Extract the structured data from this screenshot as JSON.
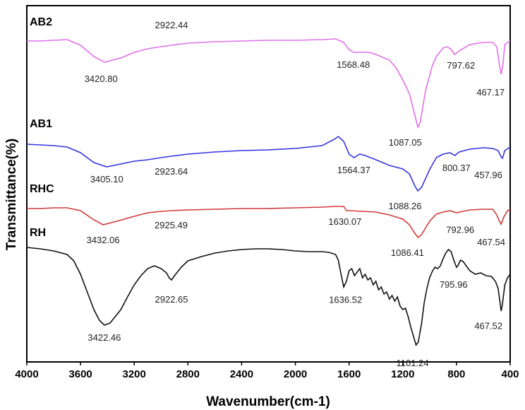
{
  "chart_data": {
    "type": "line",
    "title": "",
    "xlabel": "Wavenumber(cm-1)",
    "ylabel": "Transmittance(%)",
    "xlim": [
      4000,
      400
    ],
    "x_reversed": true,
    "xticks": [
      "4000",
      "3600",
      "3200",
      "2800",
      "2400",
      "2000",
      "1600",
      "1200",
      "800",
      "400"
    ],
    "yticks": "none",
    "series": [
      {
        "name": "AB2",
        "color": "#e070e8",
        "points": [
          [
            4000,
            50
          ],
          [
            3900,
            50
          ],
          [
            3800,
            49
          ],
          [
            3700,
            48
          ],
          [
            3600,
            56
          ],
          [
            3500,
            72
          ],
          [
            3421,
            80
          ],
          [
            3300,
            74
          ],
          [
            3200,
            66
          ],
          [
            3100,
            61
          ],
          [
            3000,
            58
          ],
          [
            2922,
            56
          ],
          [
            2800,
            53
          ],
          [
            2600,
            51
          ],
          [
            2400,
            50
          ],
          [
            2200,
            49
          ],
          [
            2000,
            49
          ],
          [
            1800,
            48
          ],
          [
            1700,
            47
          ],
          [
            1640,
            52
          ],
          [
            1600,
            62
          ],
          [
            1568,
            66
          ],
          [
            1500,
            66
          ],
          [
            1450,
            66
          ],
          [
            1400,
            69
          ],
          [
            1300,
            77
          ],
          [
            1250,
            88
          ],
          [
            1200,
            105
          ],
          [
            1150,
            125
          ],
          [
            1110,
            155
          ],
          [
            1087,
            172
          ],
          [
            1070,
            165
          ],
          [
            1030,
            120
          ],
          [
            980,
            85
          ],
          [
            950,
            72
          ],
          [
            900,
            60
          ],
          [
            870,
            58
          ],
          [
            840,
            62
          ],
          [
            815,
            69
          ],
          [
            798,
            67
          ],
          [
            780,
            64
          ],
          [
            700,
            55
          ],
          [
            600,
            52
          ],
          [
            530,
            52
          ],
          [
            500,
            58
          ],
          [
            480,
            84
          ],
          [
            467,
            97
          ],
          [
            455,
            85
          ],
          [
            440,
            55
          ],
          [
            400,
            50
          ]
        ]
      },
      {
        "name": "AB1",
        "color": "#3535e0",
        "points": [
          [
            4000,
            196
          ],
          [
            3900,
            197
          ],
          [
            3800,
            198
          ],
          [
            3700,
            200
          ],
          [
            3600,
            208
          ],
          [
            3500,
            222
          ],
          [
            3405,
            228
          ],
          [
            3300,
            224
          ],
          [
            3200,
            220
          ],
          [
            3100,
            218
          ],
          [
            3000,
            215
          ],
          [
            2924,
            213
          ],
          [
            2800,
            210
          ],
          [
            2600,
            207
          ],
          [
            2400,
            205
          ],
          [
            2200,
            204
          ],
          [
            2000,
            202
          ],
          [
            1800,
            198
          ],
          [
            1700,
            188
          ],
          [
            1680,
            185
          ],
          [
            1640,
            192
          ],
          [
            1600,
            210
          ],
          [
            1564,
            215
          ],
          [
            1520,
            210
          ],
          [
            1480,
            212
          ],
          [
            1400,
            218
          ],
          [
            1300,
            226
          ],
          [
            1200,
            231
          ],
          [
            1150,
            238
          ],
          [
            1110,
            255
          ],
          [
            1088,
            262
          ],
          [
            1060,
            257
          ],
          [
            1000,
            232
          ],
          [
            950,
            215
          ],
          [
            900,
            210
          ],
          [
            850,
            208
          ],
          [
            810,
            212
          ],
          [
            800,
            210
          ],
          [
            780,
            207
          ],
          [
            700,
            203
          ],
          [
            600,
            201
          ],
          [
            530,
            202
          ],
          [
            490,
            205
          ],
          [
            470,
            213
          ],
          [
            458,
            216
          ],
          [
            440,
            205
          ],
          [
            400,
            200
          ]
        ]
      },
      {
        "name": "RHC",
        "color": "#d03a3a",
        "points": [
          [
            4000,
            287
          ],
          [
            3900,
            287
          ],
          [
            3800,
            286
          ],
          [
            3700,
            286
          ],
          [
            3600,
            290
          ],
          [
            3500,
            303
          ],
          [
            3432,
            310
          ],
          [
            3350,
            306
          ],
          [
            3200,
            298
          ],
          [
            3100,
            293
          ],
          [
            3000,
            291
          ],
          [
            2925,
            290
          ],
          [
            2800,
            289
          ],
          [
            2600,
            288
          ],
          [
            2400,
            287
          ],
          [
            2200,
            287
          ],
          [
            2000,
            286
          ],
          [
            1800,
            285
          ],
          [
            1700,
            284
          ],
          [
            1640,
            284
          ],
          [
            1620,
            290
          ],
          [
            1600,
            290
          ],
          [
            1500,
            291
          ],
          [
            1400,
            292
          ],
          [
            1300,
            296
          ],
          [
            1200,
            302
          ],
          [
            1150,
            310
          ],
          [
            1110,
            322
          ],
          [
            1086,
            328
          ],
          [
            1060,
            324
          ],
          [
            1000,
            305
          ],
          [
            950,
            295
          ],
          [
            900,
            292
          ],
          [
            850,
            290
          ],
          [
            800,
            293
          ],
          [
            780,
            292
          ],
          [
            700,
            289
          ],
          [
            600,
            288
          ],
          [
            530,
            288
          ],
          [
            500,
            296
          ],
          [
            480,
            305
          ],
          [
            467,
            309
          ],
          [
            450,
            300
          ],
          [
            420,
            290
          ],
          [
            400,
            288
          ]
        ]
      },
      {
        "name": "RH",
        "color": "#111111",
        "points": [
          [
            4000,
            342
          ],
          [
            3900,
            344
          ],
          [
            3800,
            347
          ],
          [
            3700,
            352
          ],
          [
            3650,
            361
          ],
          [
            3600,
            380
          ],
          [
            3550,
            405
          ],
          [
            3500,
            430
          ],
          [
            3460,
            445
          ],
          [
            3422,
            452
          ],
          [
            3380,
            449
          ],
          [
            3300,
            430
          ],
          [
            3250,
            412
          ],
          [
            3200,
            395
          ],
          [
            3150,
            382
          ],
          [
            3100,
            372
          ],
          [
            3050,
            368
          ],
          [
            3000,
            372
          ],
          [
            2960,
            378
          ],
          [
            2940,
            385
          ],
          [
            2922,
            388
          ],
          [
            2900,
            382
          ],
          [
            2850,
            370
          ],
          [
            2800,
            361
          ],
          [
            2700,
            355
          ],
          [
            2600,
            350
          ],
          [
            2500,
            347
          ],
          [
            2400,
            345
          ],
          [
            2300,
            344
          ],
          [
            2200,
            344
          ],
          [
            2100,
            345
          ],
          [
            2000,
            347
          ],
          [
            1900,
            348
          ],
          [
            1800,
            348
          ],
          [
            1750,
            349
          ],
          [
            1700,
            352
          ],
          [
            1680,
            360
          ],
          [
            1660,
            380
          ],
          [
            1640,
            398
          ],
          [
            1620,
            390
          ],
          [
            1600,
            375
          ],
          [
            1580,
            372
          ],
          [
            1560,
            382
          ],
          [
            1540,
            377
          ],
          [
            1520,
            372
          ],
          [
            1500,
            385
          ],
          [
            1480,
            380
          ],
          [
            1460,
            388
          ],
          [
            1440,
            385
          ],
          [
            1420,
            395
          ],
          [
            1400,
            390
          ],
          [
            1380,
            402
          ],
          [
            1360,
            398
          ],
          [
            1340,
            408
          ],
          [
            1320,
            405
          ],
          [
            1300,
            415
          ],
          [
            1280,
            410
          ],
          [
            1260,
            418
          ],
          [
            1240,
            412
          ],
          [
            1220,
            425
          ],
          [
            1200,
            430
          ],
          [
            1180,
            428
          ],
          [
            1160,
            440
          ],
          [
            1140,
            455
          ],
          [
            1120,
            468
          ],
          [
            1101,
            480
          ],
          [
            1085,
            476
          ],
          [
            1060,
            450
          ],
          [
            1040,
            420
          ],
          [
            1020,
            400
          ],
          [
            1000,
            385
          ],
          [
            980,
            376
          ],
          [
            960,
            370
          ],
          [
            940,
            372
          ],
          [
            920,
            368
          ],
          [
            900,
            358
          ],
          [
            880,
            350
          ],
          [
            860,
            345
          ],
          [
            840,
            348
          ],
          [
            820,
            360
          ],
          [
            800,
            370
          ],
          [
            790,
            368
          ],
          [
            770,
            360
          ],
          [
            750,
            362
          ],
          [
            720,
            370
          ],
          [
            700,
            375
          ],
          [
            660,
            380
          ],
          [
            620,
            378
          ],
          [
            580,
            382
          ],
          [
            540,
            383
          ],
          [
            510,
            390
          ],
          [
            490,
            400
          ],
          [
            470,
            428
          ],
          [
            468,
            432
          ],
          [
            460,
            425
          ],
          [
            450,
            410
          ],
          [
            440,
            395
          ],
          [
            420,
            385
          ],
          [
            400,
            380
          ]
        ]
      }
    ],
    "series_labels": [
      {
        "text": "AB2",
        "series": "AB2"
      },
      {
        "text": "AB1",
        "series": "AB1"
      },
      {
        "text": "RHC",
        "series": "RHC"
      },
      {
        "text": "RH",
        "series": "RH"
      }
    ],
    "annotations": [
      {
        "text": "2922.44",
        "x": 2922.44
      },
      {
        "text": "3420.80",
        "x": 3420.8
      },
      {
        "text": "1568.48",
        "x": 1568.48
      },
      {
        "text": "797.62",
        "x": 797.62
      },
      {
        "text": "467.17",
        "x": 467.17
      },
      {
        "text": "1087.05",
        "x": 1087.05
      },
      {
        "text": "2923.64",
        "x": 2923.64
      },
      {
        "text": "3405.10",
        "x": 3405.1
      },
      {
        "text": "1564.37",
        "x": 1564.37
      },
      {
        "text": "800.37",
        "x": 800.37
      },
      {
        "text": "457.96",
        "x": 457.96
      },
      {
        "text": "1088.26",
        "x": 1088.26
      },
      {
        "text": "2925.49",
        "x": 2925.49
      },
      {
        "text": "3432.06",
        "x": 3432.06
      },
      {
        "text": "1630.07",
        "x": 1630.07
      },
      {
        "text": "792.96",
        "x": 792.96
      },
      {
        "text": "467.54",
        "x": 467.54
      },
      {
        "text": "1086.41",
        "x": 1086.41
      },
      {
        "text": "2922.65",
        "x": 2922.65
      },
      {
        "text": "3422.46",
        "x": 3422.46
      },
      {
        "text": "1636.52",
        "x": 1636.52
      },
      {
        "text": "795.96",
        "x": 795.96
      },
      {
        "text": "467.52",
        "x": 467.52
      },
      {
        "text": "1101.24",
        "x": 1101.24
      }
    ]
  }
}
